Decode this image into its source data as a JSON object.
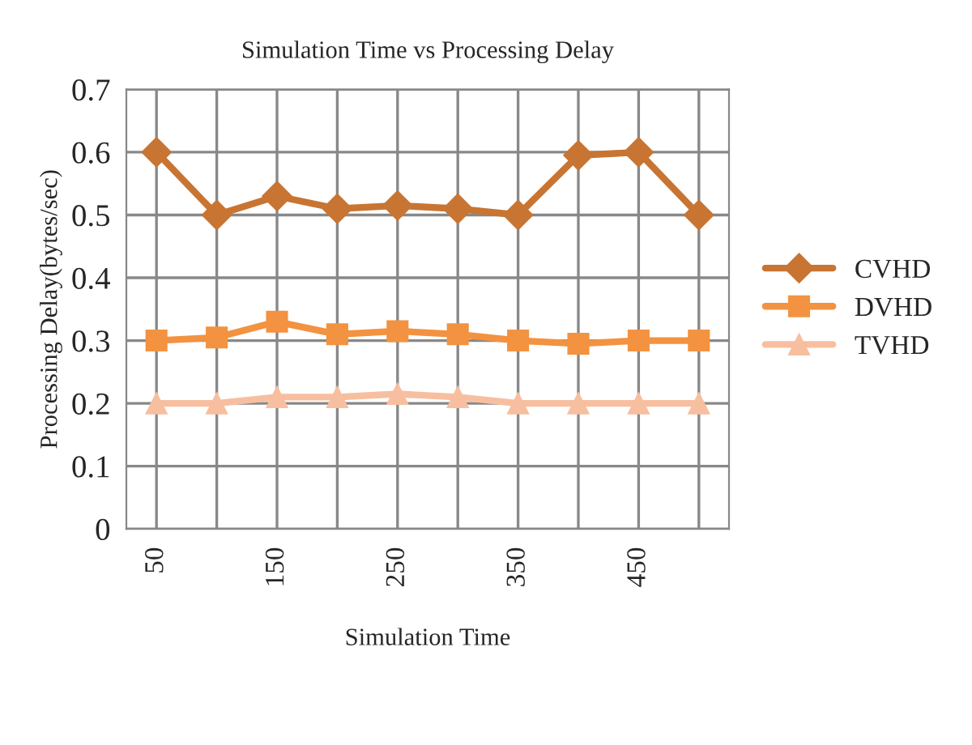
{
  "chart_data": {
    "type": "line",
    "title": "Simulation Time vs Processing Delay",
    "xlabel": "Simulation Time",
    "ylabel": "Processing Delay(bytes/sec)",
    "categories": [
      "50",
      null,
      "150",
      null,
      "250",
      null,
      "350",
      null,
      "450",
      null
    ],
    "series": [
      {
        "name": "CVHD",
        "color": "#c87533",
        "marker": "diamond",
        "values": [
          0.6,
          0.5,
          0.53,
          0.51,
          0.515,
          0.51,
          0.5,
          0.595,
          0.6,
          0.5
        ]
      },
      {
        "name": "DVHD",
        "color": "#f39240",
        "marker": "square",
        "values": [
          0.3,
          0.305,
          0.33,
          0.31,
          0.315,
          0.31,
          0.3,
          0.295,
          0.3,
          0.3
        ]
      },
      {
        "name": "TVHD",
        "color": "#f7bfa0",
        "marker": "triangle",
        "values": [
          0.2,
          0.2,
          0.21,
          0.21,
          0.215,
          0.21,
          0.2,
          0.2,
          0.2,
          0.2
        ]
      }
    ],
    "ylim": [
      0,
      0.7
    ],
    "yticks": [
      {
        "value": 0,
        "label": "0"
      },
      0.1,
      0.2,
      0.3,
      0.4,
      0.5,
      0.6,
      0.7
    ],
    "grid": true,
    "legend": "right",
    "line_style": "solid"
  }
}
